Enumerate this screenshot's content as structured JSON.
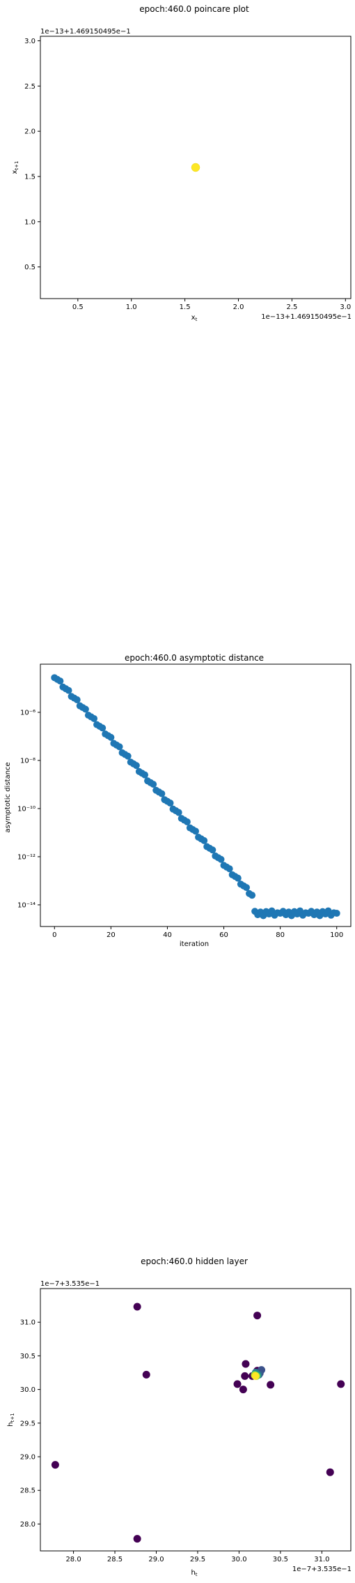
{
  "chart_data": [
    {
      "type": "scatter",
      "title": "epoch:460.0 poincare plot",
      "xlabel": "x_t",
      "ylabel": "x_{t+1}",
      "x_offset_text": "1e−13+1.469150495e−1",
      "y_offset_text": "1e−13+1.469150495e−1",
      "xlim": [
        0.15,
        3.05
      ],
      "ylim": [
        0.15,
        3.05
      ],
      "x_ticks": [
        0.5,
        1.0,
        1.5,
        2.0,
        2.5,
        3.0
      ],
      "x_tick_labels": [
        "0.5",
        "1.0",
        "1.5",
        "2.0",
        "2.5",
        "3.0"
      ],
      "y_ticks": [
        0.5,
        1.0,
        1.5,
        2.0,
        2.5,
        3.0
      ],
      "y_tick_labels": [
        "0.5",
        "1.0",
        "1.5",
        "2.0",
        "2.5",
        "3.0"
      ],
      "points": [
        {
          "x": 1.6,
          "y": 1.6,
          "color": "#fde725"
        }
      ]
    },
    {
      "type": "scatter",
      "title": "epoch:460.0 asymptotic distance",
      "xlabel": "iteration",
      "ylabel": "asymptotic distance",
      "y_scale": "log",
      "xlim": [
        -5,
        105
      ],
      "ylim_log10": [
        -14.9,
        -4.0
      ],
      "x_ticks": [
        0,
        20,
        40,
        60,
        80,
        100
      ],
      "x_tick_labels": [
        "0",
        "20",
        "40",
        "60",
        "80",
        "100"
      ],
      "y_ticks_log10": [
        -6,
        -8,
        -10,
        -12,
        -14
      ],
      "y_tick_labels": [
        "10⁻⁶",
        "10⁻⁸",
        "10⁻¹⁰",
        "10⁻¹²",
        "10⁻¹⁴"
      ],
      "marker_color": "#1f77b4",
      "series_segments": [
        {
          "x_start": 0,
          "x_end": 70,
          "log10_start": -4.5,
          "log10_end": -13.6
        },
        {
          "x_start": 71,
          "x_end": 100,
          "log10_value": -14.35
        }
      ]
    },
    {
      "type": "scatter",
      "title": "epoch:460.0 hidden layer",
      "xlabel": "h_t",
      "ylabel": "h_{t+1}",
      "x_offset_text": "1e−7+3.535e−1",
      "y_offset_text": "1e−7+3.535e−1",
      "xlim": [
        27.6,
        31.35
      ],
      "ylim": [
        27.6,
        31.5
      ],
      "x_ticks": [
        28.0,
        28.5,
        29.0,
        29.5,
        30.0,
        30.5,
        31.0
      ],
      "x_tick_labels": [
        "28.0",
        "28.5",
        "29.0",
        "29.5",
        "30.0",
        "30.5",
        "31.0"
      ],
      "y_ticks": [
        28.0,
        28.5,
        29.0,
        29.5,
        30.0,
        30.5,
        31.0
      ],
      "y_tick_labels": [
        "28.0",
        "28.5",
        "29.0",
        "29.5",
        "30.0",
        "30.5",
        "31.0"
      ],
      "points": [
        {
          "x": 27.78,
          "y": 28.88,
          "color": "#440154"
        },
        {
          "x": 28.77,
          "y": 27.78,
          "color": "#440154"
        },
        {
          "x": 28.88,
          "y": 30.22,
          "color": "#440154"
        },
        {
          "x": 30.22,
          "y": 31.1,
          "color": "#440154"
        },
        {
          "x": 31.1,
          "y": 28.77,
          "color": "#440154"
        },
        {
          "x": 28.77,
          "y": 31.23,
          "color": "#440154"
        },
        {
          "x": 31.23,
          "y": 30.08,
          "color": "#440154"
        },
        {
          "x": 30.08,
          "y": 30.38,
          "color": "#440154"
        },
        {
          "x": 30.38,
          "y": 30.07,
          "color": "#440154"
        },
        {
          "x": 30.07,
          "y": 30.2,
          "color": "#440154"
        },
        {
          "x": 29.98,
          "y": 30.08,
          "color": "#440154"
        },
        {
          "x": 30.05,
          "y": 30.0,
          "color": "#440154"
        },
        {
          "x": 30.16,
          "y": 30.2,
          "color": "#440154"
        },
        {
          "x": 30.22,
          "y": 30.28,
          "color": "#440154"
        },
        {
          "x": 30.25,
          "y": 30.24,
          "color": "#46327e"
        },
        {
          "x": 30.27,
          "y": 30.29,
          "color": "#3b528b"
        },
        {
          "x": 30.24,
          "y": 30.22,
          "color": "#31688e"
        },
        {
          "x": 30.2,
          "y": 30.25,
          "color": "#277f8e"
        },
        {
          "x": 30.22,
          "y": 30.21,
          "color": "#1f9e89"
        },
        {
          "x": 30.19,
          "y": 30.22,
          "color": "#35b779"
        },
        {
          "x": 30.21,
          "y": 30.2,
          "color": "#6ece58"
        },
        {
          "x": 30.19,
          "y": 30.21,
          "color": "#b5de2b"
        },
        {
          "x": 30.2,
          "y": 30.2,
          "color": "#fde725"
        }
      ]
    }
  ]
}
